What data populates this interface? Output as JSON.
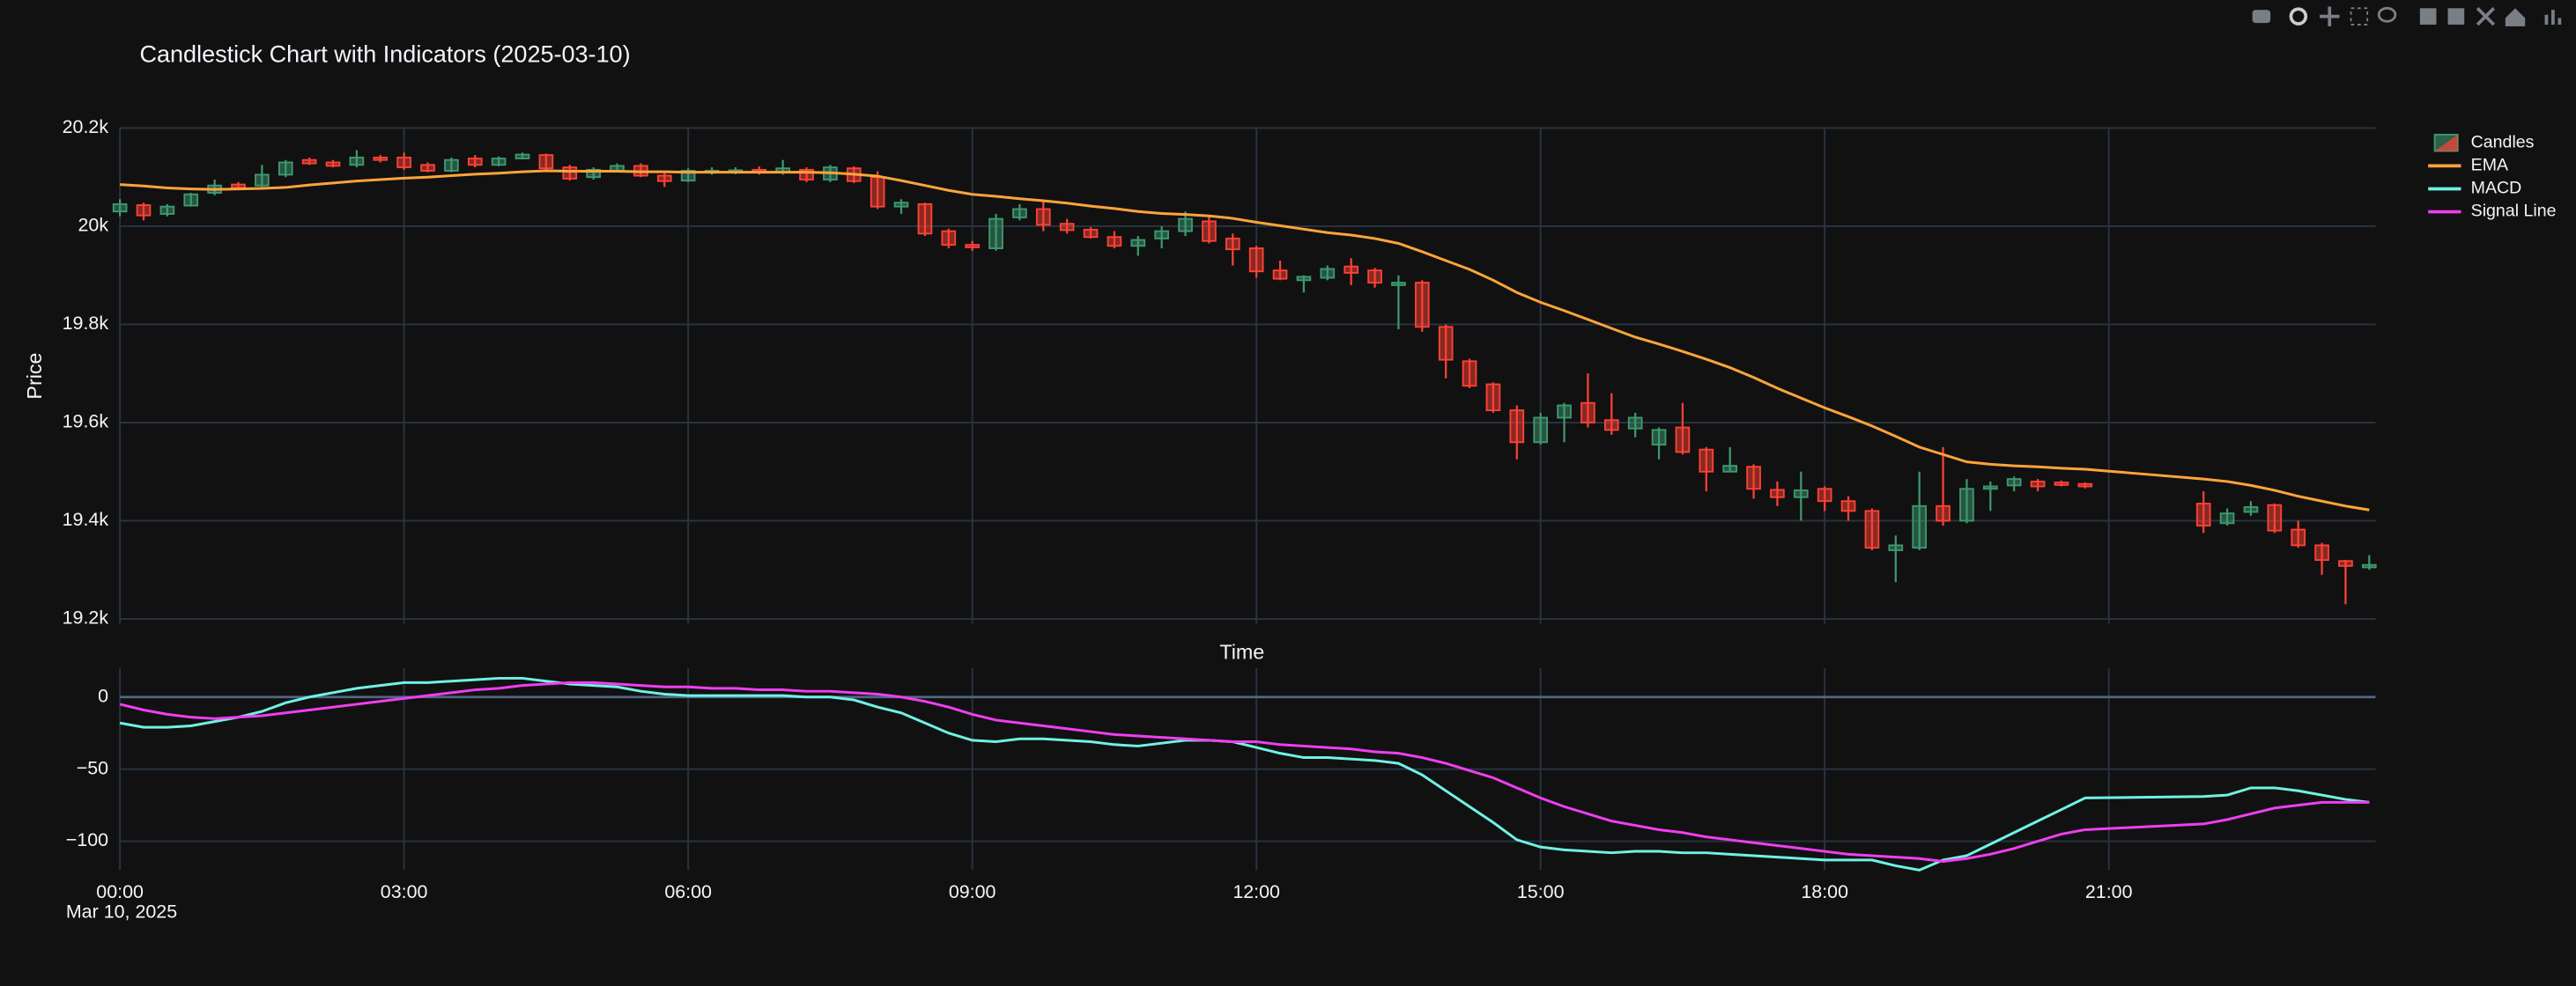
{
  "chart_data": [
    {
      "type": "candlestick",
      "title": "Candlestick Chart with Indicators (2025-03-10)",
      "xlabel": "Time",
      "ylabel": "Price",
      "xlim": [
        "2025-03-10 00:00",
        "2025-03-10 23:49"
      ],
      "ylim": [
        19190,
        20200
      ],
      "yticks": [
        {
          "value": 19200,
          "label": "19.2k"
        },
        {
          "value": 19400,
          "label": "19.4k"
        },
        {
          "value": 19600,
          "label": "19.6k"
        },
        {
          "value": 19800,
          "label": "19.8k"
        },
        {
          "value": 20000,
          "label": "20k"
        },
        {
          "value": 20200,
          "label": "20.2k"
        }
      ],
      "grid": true,
      "candles": {
        "name": "Candles",
        "increasing_color": "#3D9970",
        "decreasing_color": "#FF4136"
      },
      "x": [
        "2025-03-10 00:00",
        "2025-03-10 00:15",
        "2025-03-10 00:30",
        "2025-03-10 00:45",
        "2025-03-10 01:00",
        "2025-03-10 01:15",
        "2025-03-10 01:30",
        "2025-03-10 01:45",
        "2025-03-10 02:00",
        "2025-03-10 02:15",
        "2025-03-10 02:30",
        "2025-03-10 02:45",
        "2025-03-10 03:00",
        "2025-03-10 03:15",
        "2025-03-10 03:30",
        "2025-03-10 03:45",
        "2025-03-10 04:00",
        "2025-03-10 04:15",
        "2025-03-10 04:30",
        "2025-03-10 04:45",
        "2025-03-10 05:00",
        "2025-03-10 05:15",
        "2025-03-10 05:30",
        "2025-03-10 05:45",
        "2025-03-10 06:00",
        "2025-03-10 06:15",
        "2025-03-10 06:30",
        "2025-03-10 06:45",
        "2025-03-10 07:00",
        "2025-03-10 07:15",
        "2025-03-10 07:30",
        "2025-03-10 07:45",
        "2025-03-10 08:00",
        "2025-03-10 08:15",
        "2025-03-10 08:30",
        "2025-03-10 08:45",
        "2025-03-10 09:00",
        "2025-03-10 09:15",
        "2025-03-10 09:30",
        "2025-03-10 09:45",
        "2025-03-10 10:00",
        "2025-03-10 10:15",
        "2025-03-10 10:30",
        "2025-03-10 10:45",
        "2025-03-10 11:00",
        "2025-03-10 11:15",
        "2025-03-10 11:30",
        "2025-03-10 11:45",
        "2025-03-10 12:00",
        "2025-03-10 12:15",
        "2025-03-10 12:30",
        "2025-03-10 12:45",
        "2025-03-10 13:00",
        "2025-03-10 13:15",
        "2025-03-10 13:30",
        "2025-03-10 13:45",
        "2025-03-10 14:00",
        "2025-03-10 14:15",
        "2025-03-10 14:30",
        "2025-03-10 14:45",
        "2025-03-10 15:00",
        "2025-03-10 15:15",
        "2025-03-10 15:30",
        "2025-03-10 15:45",
        "2025-03-10 16:00",
        "2025-03-10 16:15",
        "2025-03-10 16:30",
        "2025-03-10 16:45",
        "2025-03-10 17:00",
        "2025-03-10 17:15",
        "2025-03-10 17:30",
        "2025-03-10 17:45",
        "2025-03-10 18:00",
        "2025-03-10 18:15",
        "2025-03-10 18:30",
        "2025-03-10 18:45",
        "2025-03-10 19:00",
        "2025-03-10 19:15",
        "2025-03-10 19:30",
        "2025-03-10 19:45",
        "2025-03-10 20:00",
        "2025-03-10 20:15",
        "2025-03-10 20:30",
        "2025-03-10 20:45",
        "2025-03-10 22:00",
        "2025-03-10 22:15",
        "2025-03-10 22:30",
        "2025-03-10 22:45",
        "2025-03-10 23:00",
        "2025-03-10 23:15",
        "2025-03-10 23:30",
        "2025-03-10 23:45"
      ],
      "open": [
        20030,
        20043,
        20025,
        20042,
        20068,
        20085,
        20083,
        20105,
        20135,
        20130,
        20125,
        20140,
        20140,
        20125,
        20113,
        20138,
        20125,
        20138,
        20145,
        20120,
        20100,
        20113,
        20123,
        20103,
        20093,
        20110,
        20110,
        20115,
        20110,
        20115,
        20095,
        20118,
        20100,
        20040,
        20045,
        19990,
        19962,
        19955,
        20018,
        20035,
        20005,
        19993,
        19978,
        19960,
        19975,
        19990,
        20010,
        19975,
        19955,
        19910,
        19890,
        19895,
        19918,
        19910,
        19880,
        19885,
        19795,
        19725,
        19678,
        19625,
        19560,
        19610,
        19640,
        19605,
        19588,
        19555,
        19590,
        19545,
        19500,
        19510,
        19463,
        19448,
        19465,
        19440,
        19420,
        19340,
        19345,
        19430,
        19400,
        19465,
        19472,
        19480,
        19478,
        19475,
        19435,
        19395,
        19418,
        19432,
        19382,
        19350,
        19318,
        19305
      ],
      "high": [
        20055,
        20048,
        20045,
        20068,
        20095,
        20090,
        20125,
        20135,
        20140,
        20135,
        20155,
        20145,
        20150,
        20130,
        20140,
        20145,
        20142,
        20150,
        20148,
        20125,
        20120,
        20128,
        20128,
        20108,
        20118,
        20120,
        20120,
        20122,
        20135,
        20120,
        20125,
        20122,
        20112,
        20055,
        20048,
        19995,
        19970,
        20025,
        20045,
        20050,
        20015,
        19998,
        19990,
        19980,
        20000,
        20030,
        20020,
        19985,
        19960,
        19930,
        19900,
        19920,
        19935,
        19915,
        19900,
        19890,
        19800,
        19730,
        19682,
        19635,
        19620,
        19640,
        19700,
        19660,
        19620,
        19590,
        19640,
        19550,
        19550,
        19515,
        19480,
        19500,
        19470,
        19450,
        19425,
        19370,
        19500,
        19550,
        19485,
        19480,
        19490,
        19485,
        19482,
        19478,
        19460,
        19425,
        19440,
        19435,
        19400,
        19355,
        19320,
        19330
      ],
      "low": [
        20020,
        20012,
        20020,
        20040,
        20063,
        20075,
        20080,
        20100,
        20125,
        20120,
        20120,
        20130,
        20115,
        20110,
        20110,
        20120,
        20122,
        20136,
        20115,
        20093,
        20095,
        20110,
        20100,
        20080,
        20090,
        20105,
        20106,
        20105,
        20105,
        20090,
        20090,
        20088,
        20035,
        20025,
        19980,
        19955,
        19950,
        19950,
        20012,
        19990,
        19985,
        19975,
        19955,
        19940,
        19955,
        19980,
        19965,
        19920,
        19895,
        19890,
        19865,
        19890,
        19880,
        19875,
        19790,
        19785,
        19690,
        19670,
        19620,
        19525,
        19555,
        19560,
        19590,
        19575,
        19570,
        19525,
        19535,
        19460,
        19500,
        19445,
        19430,
        19400,
        19420,
        19400,
        19340,
        19275,
        19340,
        19390,
        19395,
        19420,
        19460,
        19460,
        19470,
        19466,
        19375,
        19390,
        19410,
        19375,
        19345,
        19290,
        19230,
        19300
      ],
      "close": [
        20045,
        20022,
        20040,
        20065,
        20083,
        20078,
        20105,
        20130,
        20128,
        20123,
        20140,
        20135,
        20120,
        20113,
        20135,
        20125,
        20138,
        20146,
        20118,
        20097,
        20115,
        20123,
        20103,
        20092,
        20113,
        20113,
        20114,
        20110,
        20118,
        20095,
        20120,
        20092,
        20040,
        20048,
        19985,
        19962,
        19957,
        20015,
        20035,
        20003,
        19992,
        19978,
        19960,
        19972,
        19990,
        20015,
        19970,
        19953,
        19908,
        19893,
        19897,
        19913,
        19905,
        19885,
        19885,
        19795,
        19728,
        19675,
        19625,
        19560,
        19610,
        19635,
        19600,
        19585,
        19610,
        19585,
        19540,
        19500,
        19512,
        19465,
        19448,
        19462,
        19440,
        19420,
        19345,
        19350,
        19430,
        19400,
        19465,
        19470,
        19485,
        19470,
        19473,
        19470,
        19390,
        19415,
        19428,
        19380,
        19350,
        19320,
        19308,
        19310
      ],
      "series": [
        {
          "name": "EMA",
          "color": "#ffa43b",
          "values": [
            20085,
            20082,
            20078,
            20076,
            20075,
            20076,
            20077,
            20079,
            20084,
            20088,
            20092,
            20095,
            20098,
            20100,
            20103,
            20106,
            20108,
            20111,
            20113,
            20112,
            20112,
            20112,
            20111,
            20111,
            20110,
            20110,
            20110,
            20110,
            20110,
            20110,
            20109,
            20106,
            20102,
            20093,
            20083,
            20073,
            20065,
            20061,
            20056,
            20052,
            20047,
            20041,
            20036,
            20030,
            20026,
            20024,
            20021,
            20016,
            20008,
            20001,
            19994,
            19987,
            19982,
            19975,
            19965,
            19948,
            19930,
            19912,
            19890,
            19865,
            19845,
            19828,
            19810,
            19792,
            19774,
            19760,
            19745,
            19729,
            19712,
            19692,
            19670,
            19650,
            19630,
            19612,
            19593,
            19572,
            19550,
            19535,
            19520,
            19515,
            19512,
            19510,
            19507,
            19505,
            19485,
            19480,
            19472,
            19462,
            19450,
            19440,
            19430,
            19422
          ]
        }
      ]
    },
    {
      "type": "line",
      "xlim": [
        "2025-03-10 00:00",
        "2025-03-10 23:49"
      ],
      "xticks": [
        {
          "value": "2025-03-10 00:00",
          "label": "00:00"
        },
        {
          "value": "2025-03-10 03:00",
          "label": "03:00"
        },
        {
          "value": "2025-03-10 06:00",
          "label": "06:00"
        },
        {
          "value": "2025-03-10 09:00",
          "label": "09:00"
        },
        {
          "value": "2025-03-10 12:00",
          "label": "12:00"
        },
        {
          "value": "2025-03-10 15:00",
          "label": "15:00"
        },
        {
          "value": "2025-03-10 18:00",
          "label": "18:00"
        },
        {
          "value": "2025-03-10 21:00",
          "label": "21:00"
        }
      ],
      "x_date": "Mar 10, 2025",
      "ylim": [
        -120,
        20
      ],
      "yticks": [
        {
          "value": -100,
          "label": "−100"
        },
        {
          "value": -50,
          "label": "−50"
        },
        0
      ],
      "grid": true,
      "x": [
        "2025-03-10 00:00",
        "2025-03-10 00:15",
        "2025-03-10 00:30",
        "2025-03-10 00:45",
        "2025-03-10 01:00",
        "2025-03-10 01:15",
        "2025-03-10 01:30",
        "2025-03-10 01:45",
        "2025-03-10 02:00",
        "2025-03-10 02:15",
        "2025-03-10 02:30",
        "2025-03-10 02:45",
        "2025-03-10 03:00",
        "2025-03-10 03:15",
        "2025-03-10 03:30",
        "2025-03-10 03:45",
        "2025-03-10 04:00",
        "2025-03-10 04:15",
        "2025-03-10 04:30",
        "2025-03-10 04:45",
        "2025-03-10 05:00",
        "2025-03-10 05:15",
        "2025-03-10 05:30",
        "2025-03-10 05:45",
        "2025-03-10 06:00",
        "2025-03-10 06:15",
        "2025-03-10 06:30",
        "2025-03-10 06:45",
        "2025-03-10 07:00",
        "2025-03-10 07:15",
        "2025-03-10 07:30",
        "2025-03-10 07:45",
        "2025-03-10 08:00",
        "2025-03-10 08:15",
        "2025-03-10 08:30",
        "2025-03-10 08:45",
        "2025-03-10 09:00",
        "2025-03-10 09:15",
        "2025-03-10 09:30",
        "2025-03-10 09:45",
        "2025-03-10 10:00",
        "2025-03-10 10:15",
        "2025-03-10 10:30",
        "2025-03-10 10:45",
        "2025-03-10 11:00",
        "2025-03-10 11:15",
        "2025-03-10 11:30",
        "2025-03-10 11:45",
        "2025-03-10 12:00",
        "2025-03-10 12:15",
        "2025-03-10 12:30",
        "2025-03-10 12:45",
        "2025-03-10 13:00",
        "2025-03-10 13:15",
        "2025-03-10 13:30",
        "2025-03-10 13:45",
        "2025-03-10 14:00",
        "2025-03-10 14:15",
        "2025-03-10 14:30",
        "2025-03-10 14:45",
        "2025-03-10 15:00",
        "2025-03-10 15:15",
        "2025-03-10 15:30",
        "2025-03-10 15:45",
        "2025-03-10 16:00",
        "2025-03-10 16:15",
        "2025-03-10 16:30",
        "2025-03-10 16:45",
        "2025-03-10 17:00",
        "2025-03-10 17:15",
        "2025-03-10 17:30",
        "2025-03-10 17:45",
        "2025-03-10 18:00",
        "2025-03-10 18:15",
        "2025-03-10 18:30",
        "2025-03-10 18:45",
        "2025-03-10 19:00",
        "2025-03-10 19:15",
        "2025-03-10 19:30",
        "2025-03-10 19:45",
        "2025-03-10 20:00",
        "2025-03-10 20:15",
        "2025-03-10 20:30",
        "2025-03-10 20:45",
        "2025-03-10 22:00",
        "2025-03-10 22:15",
        "2025-03-10 22:30",
        "2025-03-10 22:45",
        "2025-03-10 23:00",
        "2025-03-10 23:15",
        "2025-03-10 23:30",
        "2025-03-10 23:45"
      ],
      "series": [
        {
          "name": "MACD",
          "color": "#6ff2e4",
          "values": [
            -18,
            -21,
            -21,
            -20,
            -17,
            -14,
            -10,
            -4,
            0,
            3,
            6,
            8,
            10,
            10,
            11,
            12,
            13,
            13,
            11,
            9,
            8,
            7,
            4,
            2,
            1,
            1,
            1,
            1,
            1,
            0,
            0,
            -2,
            -7,
            -11,
            -18,
            -25,
            -30,
            -31,
            -29,
            -29,
            -30,
            -31,
            -33,
            -34,
            -32,
            -30,
            -30,
            -31,
            -35,
            -39,
            -42,
            -42,
            -43,
            -44,
            -46,
            -54,
            -65,
            -76,
            -87,
            -99,
            -104,
            -106,
            -107,
            -108,
            -107,
            -107,
            -108,
            -108,
            -109,
            -110,
            -111,
            -112,
            -113,
            -113,
            -113,
            -117,
            -120,
            -113,
            -110,
            -102,
            -94,
            -86,
            -78,
            -70,
            -69,
            -68,
            -63,
            -63,
            -65,
            -68,
            -71,
            -73
          ]
        },
        {
          "name": "Signal Line",
          "color": "#f03ef0",
          "values": [
            -5,
            -9,
            -12,
            -14,
            -15,
            -14,
            -13,
            -11,
            -9,
            -7,
            -5,
            -3,
            -1,
            1,
            3,
            5,
            6,
            8,
            9,
            10,
            10,
            9,
            8,
            7,
            7,
            6,
            6,
            5,
            5,
            4,
            4,
            3,
            2,
            0,
            -3,
            -7,
            -12,
            -16,
            -18,
            -20,
            -22,
            -24,
            -26,
            -27,
            -28,
            -29,
            -30,
            -31,
            -31,
            -33,
            -34,
            -35,
            -36,
            -38,
            -39,
            -42,
            -46,
            -51,
            -56,
            -63,
            -70,
            -76,
            -81,
            -86,
            -89,
            -92,
            -94,
            -97,
            -99,
            -101,
            -103,
            -105,
            -107,
            -109,
            -110,
            -111,
            -112,
            -114,
            -112,
            -109,
            -105,
            -100,
            -95,
            -92,
            -88,
            -85,
            -81,
            -77,
            -75,
            -73,
            -73,
            -73
          ]
        }
      ]
    }
  ]
}
